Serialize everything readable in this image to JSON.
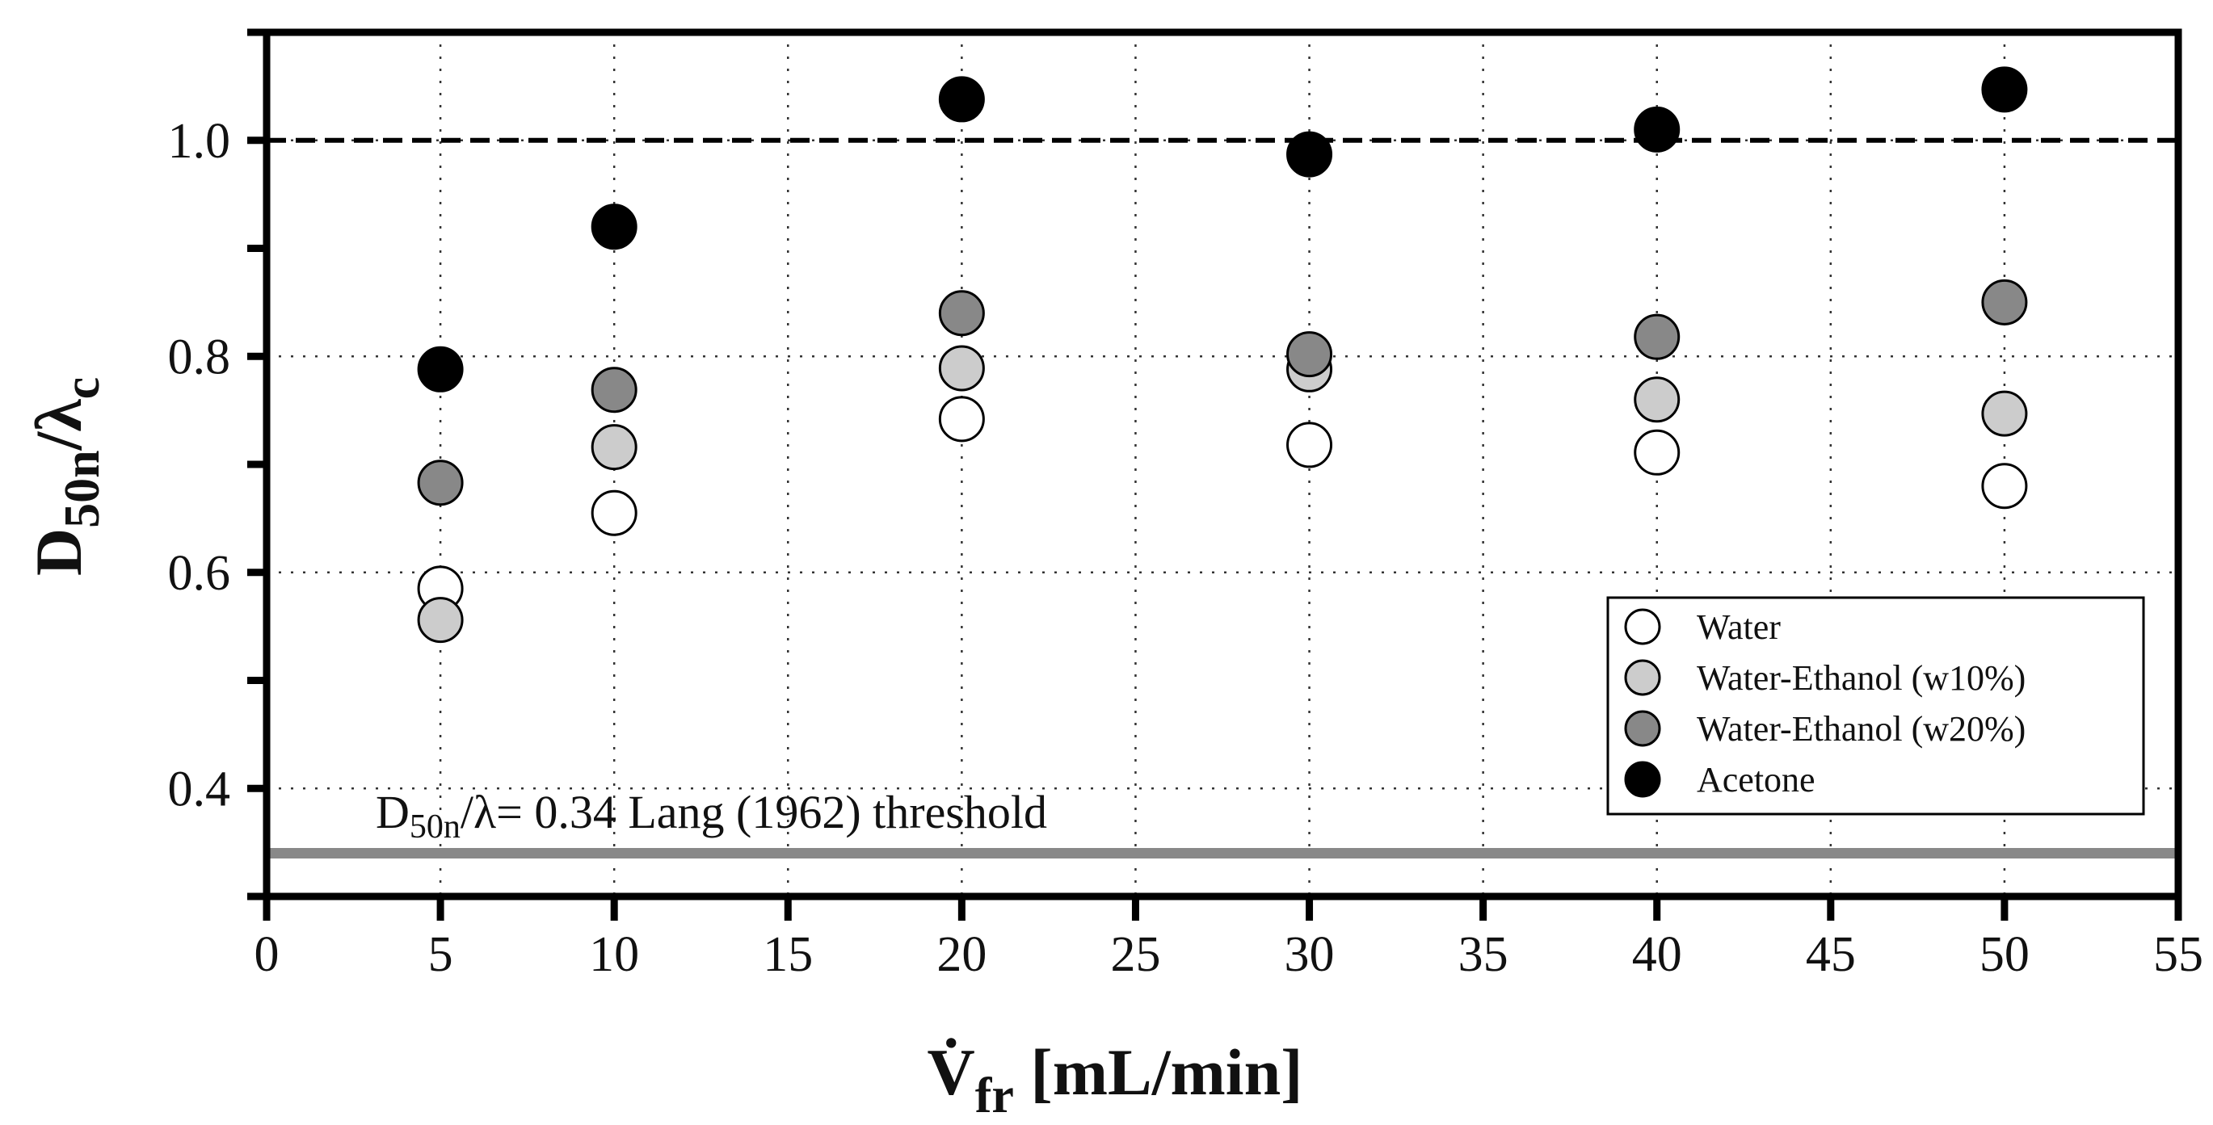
{
  "chart_data": {
    "type": "scatter",
    "title": "",
    "xlabel": "V̇fr [mL/min]",
    "xlabel_main": "V̇",
    "xlabel_sub": "fr",
    "xlabel_rest": " [mL/min]",
    "ylabel": "D50n/λc",
    "ylabel_main": "D",
    "ylabel_sub1": "50n",
    "ylabel_mid": "/λ",
    "ylabel_sub2": "c",
    "xlim": [
      0,
      55
    ],
    "ylim": [
      0.3,
      1.1
    ],
    "xticks": [
      0,
      5,
      10,
      15,
      20,
      25,
      30,
      35,
      40,
      45,
      50,
      55
    ],
    "yticks_labeled": [
      0.4,
      0.6,
      0.8,
      1.0
    ],
    "ytick_labels": [
      "0.4",
      "0.6",
      "0.8",
      "1.0"
    ],
    "xtick_labels": [
      "0",
      "5",
      "10",
      "15",
      "20",
      "25",
      "30",
      "35",
      "40",
      "45",
      "50",
      "55"
    ],
    "grid": true,
    "legend_position": "bottom-right",
    "x": [
      5,
      10,
      20,
      30,
      40,
      50
    ],
    "series": [
      {
        "name": "Water",
        "color": "#ffffff",
        "values": [
          0.585,
          0.655,
          0.742,
          0.718,
          0.711,
          0.68
        ]
      },
      {
        "name": "Water-Ethanol (w10%)",
        "color": "#cccccc",
        "values": [
          0.556,
          0.716,
          0.789,
          0.788,
          0.76,
          0.747
        ]
      },
      {
        "name": "Water-Ethanol (w20%)",
        "color": "#888888",
        "values": [
          0.683,
          0.769,
          0.84,
          0.802,
          0.818,
          0.85
        ]
      },
      {
        "name": "Acetone",
        "color": "#000000",
        "values": [
          0.788,
          0.92,
          1.038,
          0.987,
          1.01,
          1.047
        ]
      }
    ],
    "reference_lines": [
      {
        "y": 1.0,
        "style": "dashed",
        "color": "#000000"
      },
      {
        "y": 0.34,
        "style": "solid",
        "color": "#888888"
      }
    ],
    "annotation": {
      "prefix": "D",
      "sub": "50n",
      "rest": "/λ= 0.34 Lang (1962) threshold"
    }
  }
}
